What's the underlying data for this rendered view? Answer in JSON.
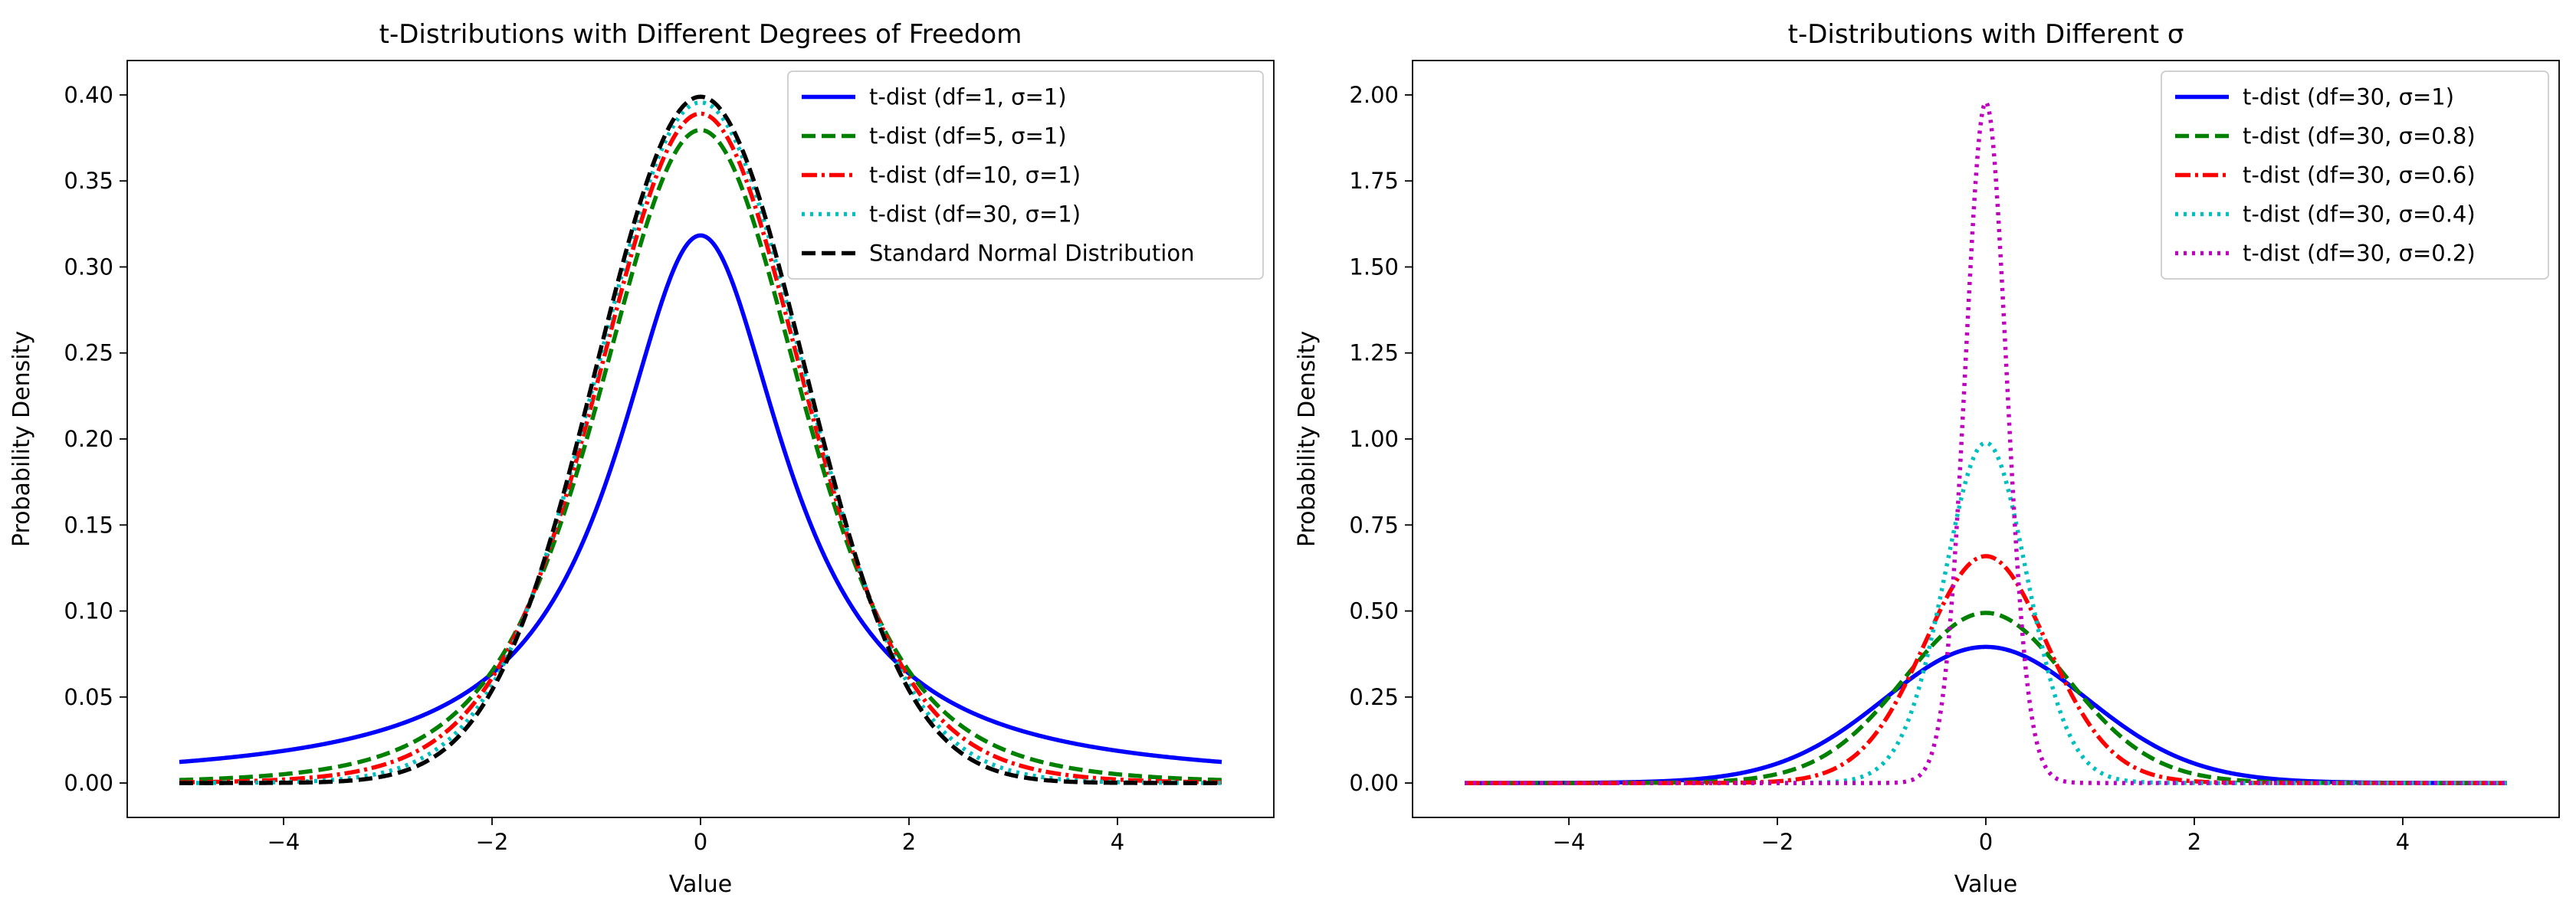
{
  "chart_data": [
    {
      "type": "line",
      "title": "t-Distributions with Different Degrees of Freedom",
      "xlabel": "Value",
      "ylabel": "Probability Density",
      "xlim": [
        -5.5,
        5.5
      ],
      "ylim": [
        -0.02,
        0.42
      ],
      "xticks": [
        -4,
        -2,
        0,
        2,
        4
      ],
      "xtick_labels": [
        "−4",
        "−2",
        "0",
        "2",
        "4"
      ],
      "yticks": [
        0.0,
        0.05,
        0.1,
        0.15,
        0.2,
        0.25,
        0.3,
        0.35,
        0.4
      ],
      "ytick_labels": [
        "0.00",
        "0.05",
        "0.10",
        "0.15",
        "0.20",
        "0.25",
        "0.30",
        "0.35",
        "0.40"
      ],
      "x_range": [
        -5,
        5
      ],
      "grid": false,
      "legend_position": "top-right",
      "series": [
        {
          "name": "t-dist (df=1, σ=1)",
          "df": 1,
          "sigma": 1,
          "color": "#0000ff",
          "style": "solid"
        },
        {
          "name": "t-dist (df=5, σ=1)",
          "df": 5,
          "sigma": 1,
          "color": "#008000",
          "style": "dashed"
        },
        {
          "name": "t-dist (df=10, σ=1)",
          "df": 10,
          "sigma": 1,
          "color": "#ff0000",
          "style": "dashdot"
        },
        {
          "name": "t-dist (df=30, σ=1)",
          "df": 30,
          "sigma": 1,
          "color": "#00bfbf",
          "style": "dotted"
        },
        {
          "name": "Standard Normal Distribution",
          "df": "normal",
          "sigma": 1,
          "color": "#000000",
          "style": "dashed"
        }
      ]
    },
    {
      "type": "line",
      "title": "t-Distributions with Different σ",
      "xlabel": "Value",
      "ylabel": "Probability Density",
      "xlim": [
        -5.5,
        5.5
      ],
      "ylim": [
        -0.1,
        2.1
      ],
      "xticks": [
        -4,
        -2,
        0,
        2,
        4
      ],
      "xtick_labels": [
        "−4",
        "−2",
        "0",
        "2",
        "4"
      ],
      "yticks": [
        0.0,
        0.25,
        0.5,
        0.75,
        1.0,
        1.25,
        1.5,
        1.75,
        2.0
      ],
      "ytick_labels": [
        "0.00",
        "0.25",
        "0.50",
        "0.75",
        "1.00",
        "1.25",
        "1.50",
        "1.75",
        "2.00"
      ],
      "x_range": [
        -5,
        5
      ],
      "grid": false,
      "legend_position": "top-right",
      "series": [
        {
          "name": "t-dist (df=30, σ=1)",
          "df": 30,
          "sigma": 1,
          "color": "#0000ff",
          "style": "solid"
        },
        {
          "name": "t-dist (df=30, σ=0.8)",
          "df": 30,
          "sigma": 0.8,
          "color": "#008000",
          "style": "dashed"
        },
        {
          "name": "t-dist (df=30, σ=0.6)",
          "df": 30,
          "sigma": 0.6,
          "color": "#ff0000",
          "style": "dashdot"
        },
        {
          "name": "t-dist (df=30, σ=0.4)",
          "df": 30,
          "sigma": 0.4,
          "color": "#00bfbf",
          "style": "dotted"
        },
        {
          "name": "t-dist (df=30, σ=0.2)",
          "df": 30,
          "sigma": 0.2,
          "color": "#bf00bf",
          "style": "dotted"
        }
      ]
    }
  ]
}
